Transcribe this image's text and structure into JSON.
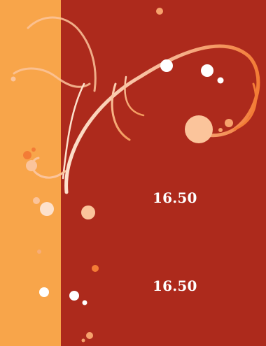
{
  "values": {
    "first": "16.50",
    "second": "16.50"
  },
  "colors": {
    "background": "#ad2a1c",
    "left_strip": "#f8a54a",
    "swirl": "#f6b08a",
    "dot_white": "#ffffff",
    "dot_peach": "#fbc49b",
    "dot_orange": "#f37c36"
  },
  "decoration": {
    "pattern": "floral-swirl"
  }
}
